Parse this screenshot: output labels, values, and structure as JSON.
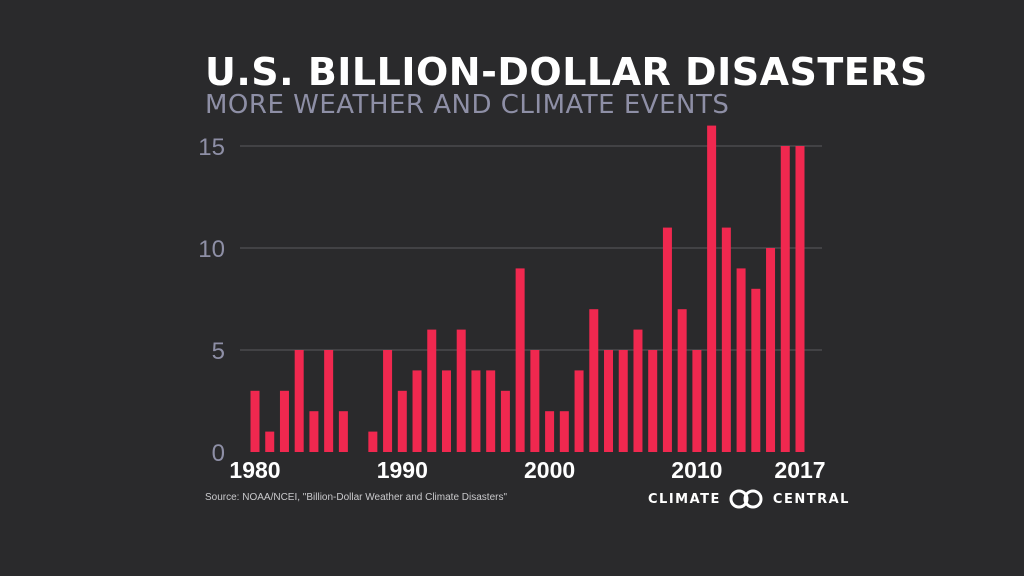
{
  "title": "U.S. BILLION-DOLLAR DISASTERS",
  "subtitle": "MORE WEATHER AND CLIMATE EVENTS",
  "source": "Source: NOAA/NCEI, \"Billion-Dollar Weather and Climate Disasters\"",
  "logo": {
    "left": "CLIMATE",
    "right": "CENTRAL",
    "icon": "double-ring-icon"
  },
  "colors": {
    "background": "#2a2a2c",
    "bar": "#f0284f",
    "grid": "#5a5a5e",
    "axis_text": "#8e8fa6",
    "xtick_text": "#ffffff"
  },
  "chart_data": {
    "type": "bar",
    "x": [
      1980,
      1981,
      1982,
      1983,
      1984,
      1985,
      1986,
      1987,
      1988,
      1989,
      1990,
      1991,
      1992,
      1993,
      1994,
      1995,
      1996,
      1997,
      1998,
      1999,
      2000,
      2001,
      2002,
      2003,
      2004,
      2005,
      2006,
      2007,
      2008,
      2009,
      2010,
      2011,
      2012,
      2013,
      2014,
      2015,
      2016,
      2017
    ],
    "values": [
      3,
      1,
      3,
      5,
      2,
      5,
      2,
      0,
      1,
      5,
      3,
      4,
      6,
      4,
      6,
      4,
      4,
      3,
      9,
      5,
      2,
      2,
      4,
      7,
      5,
      5,
      6,
      5,
      11,
      7,
      5,
      16,
      11,
      9,
      8,
      10,
      15,
      15
    ],
    "xticks": [
      "1980",
      "1990",
      "2000",
      "2010",
      "2017"
    ],
    "yticks": [
      "0",
      "5",
      "10",
      "15"
    ],
    "ylim": [
      0,
      16
    ],
    "grid": true
  }
}
